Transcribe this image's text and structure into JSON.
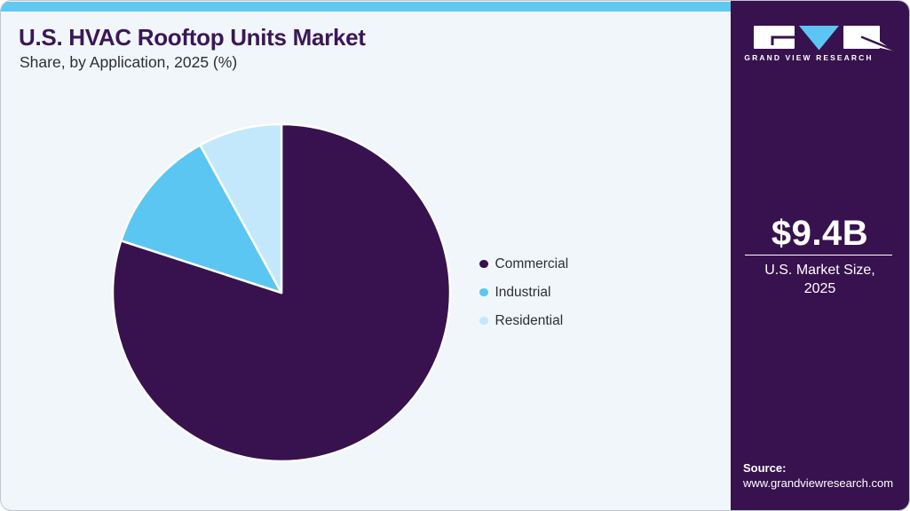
{
  "page": {
    "background": "#F1F6FA",
    "card_border": "#C0C5CE",
    "accent_strip_color": "#5FC9F1"
  },
  "header": {
    "title": "U.S. HVAC Rooftop Units Market",
    "subtitle": "Share, by Application, 2025 (%)",
    "title_color": "#3B1757"
  },
  "chart_data": {
    "type": "pie",
    "title": "U.S. HVAC Rooftop Units Market Share, by Application, 2025 (%)",
    "unit": "percent",
    "start_angle_deg": -90,
    "direction": "clockwise",
    "legend_position": "right",
    "slices": [
      {
        "label": "Commercial",
        "value": 80,
        "color": "#38124E"
      },
      {
        "label": "Industrial",
        "value": 12,
        "color": "#5BC6F2"
      },
      {
        "label": "Residential",
        "value": 8,
        "color": "#C3E8FB"
      }
    ]
  },
  "sidebar": {
    "background": "#38124E",
    "brand_name": "GRAND VIEW RESEARCH",
    "market_size": {
      "value": "$9.4B",
      "label_line1": "U.S. Market Size,",
      "label_line2": "2025"
    },
    "source": {
      "label": "Source:",
      "url": "www.grandviewresearch.com"
    }
  }
}
